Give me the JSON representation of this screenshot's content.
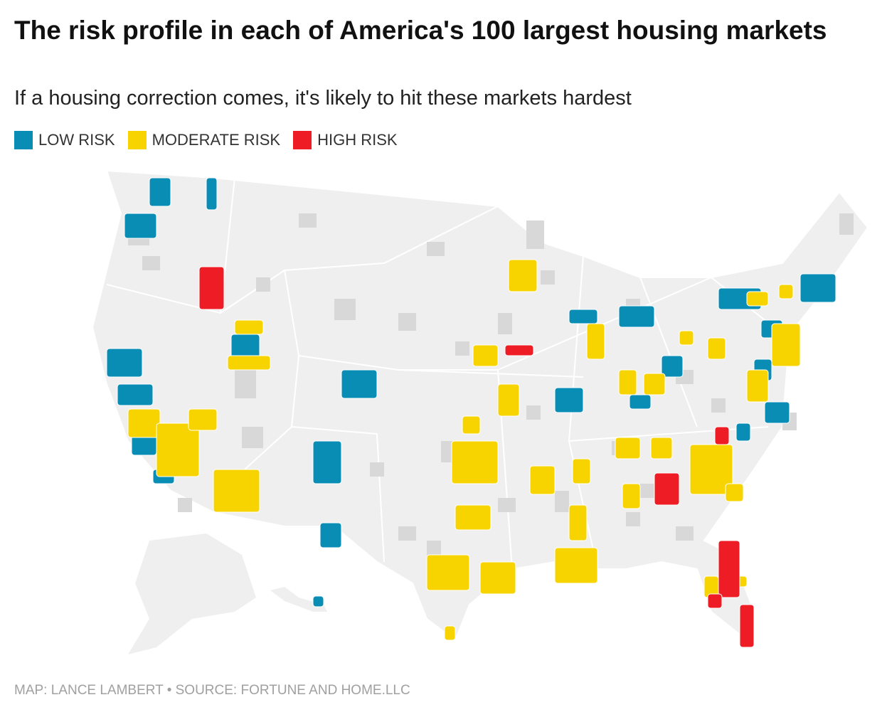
{
  "title": "The risk profile in each of America's 100 largest housing markets",
  "subtitle": "If a housing correction comes, it's likely to hit these markets hardest",
  "legend": [
    {
      "name": "LOW RISK",
      "color": "#0a8db5"
    },
    {
      "name": "MODERATE RISK",
      "color": "#f7d400"
    },
    {
      "name": "HIGH RISK",
      "color": "#ee1c25"
    }
  ],
  "credit": "MAP: LANCE LAMBERT • SOURCE: FORTUNE AND HOME.LLC"
}
